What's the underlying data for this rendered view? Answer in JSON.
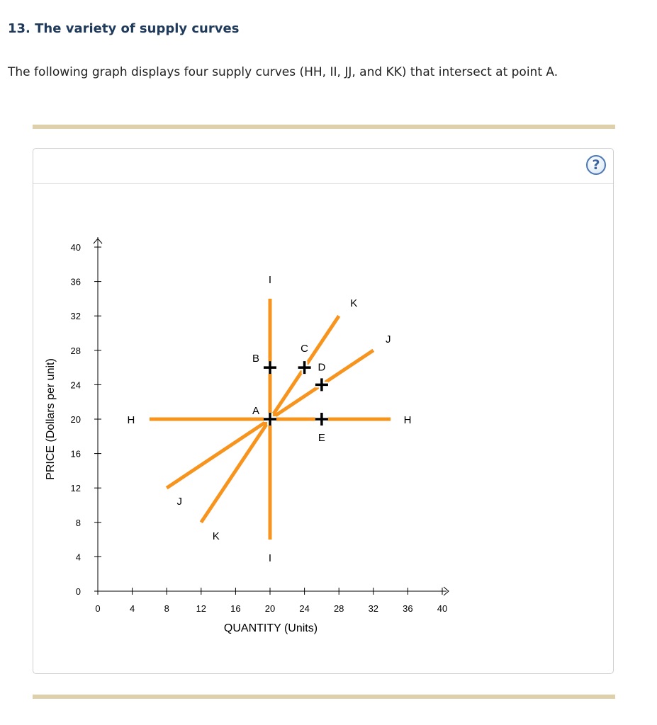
{
  "question": {
    "title": "13. The variety of supply curves",
    "text": "The following graph displays four supply curves (HH, II, JJ, and KK) that intersect at point A."
  },
  "panel": {
    "help_icon": "question-mark-icon",
    "help_glyph": "?"
  },
  "colors": {
    "curve": "#f7941d",
    "rule": "#ddd0ab",
    "axis": "#000000",
    "point": "#000000",
    "title": "#1f3a5a"
  },
  "chart_data": {
    "type": "line",
    "xlabel": "QUANTITY (Units)",
    "ylabel": "PRICE (Dollars per unit)",
    "xlim": [
      0,
      40
    ],
    "ylim": [
      0,
      40
    ],
    "xticks": [
      0,
      4,
      8,
      12,
      16,
      20,
      24,
      28,
      32,
      36,
      40
    ],
    "yticks": [
      0,
      4,
      8,
      12,
      16,
      20,
      24,
      28,
      32,
      36,
      40
    ],
    "grid": false,
    "series": [
      {
        "name": "HH",
        "start": {
          "x": 6,
          "y": 20
        },
        "end": {
          "x": 34,
          "y": 20
        },
        "label_start": "H",
        "label_end": "H"
      },
      {
        "name": "II",
        "start": {
          "x": 20,
          "y": 6
        },
        "end": {
          "x": 20,
          "y": 34
        },
        "label_start": "I",
        "label_end": "I"
      },
      {
        "name": "JJ",
        "start": {
          "x": 8,
          "y": 12
        },
        "end": {
          "x": 32,
          "y": 28
        },
        "label_start": "J",
        "label_end": "J"
      },
      {
        "name": "KK",
        "start": {
          "x": 12,
          "y": 8
        },
        "end": {
          "x": 28,
          "y": 32
        },
        "label_start": "K",
        "label_end": "K"
      }
    ],
    "points": [
      {
        "label": "A",
        "x": 20,
        "y": 20
      },
      {
        "label": "B",
        "x": 20,
        "y": 26
      },
      {
        "label": "C",
        "x": 24,
        "y": 26
      },
      {
        "label": "D",
        "x": 26,
        "y": 24
      },
      {
        "label": "E",
        "x": 26,
        "y": 20
      }
    ]
  }
}
